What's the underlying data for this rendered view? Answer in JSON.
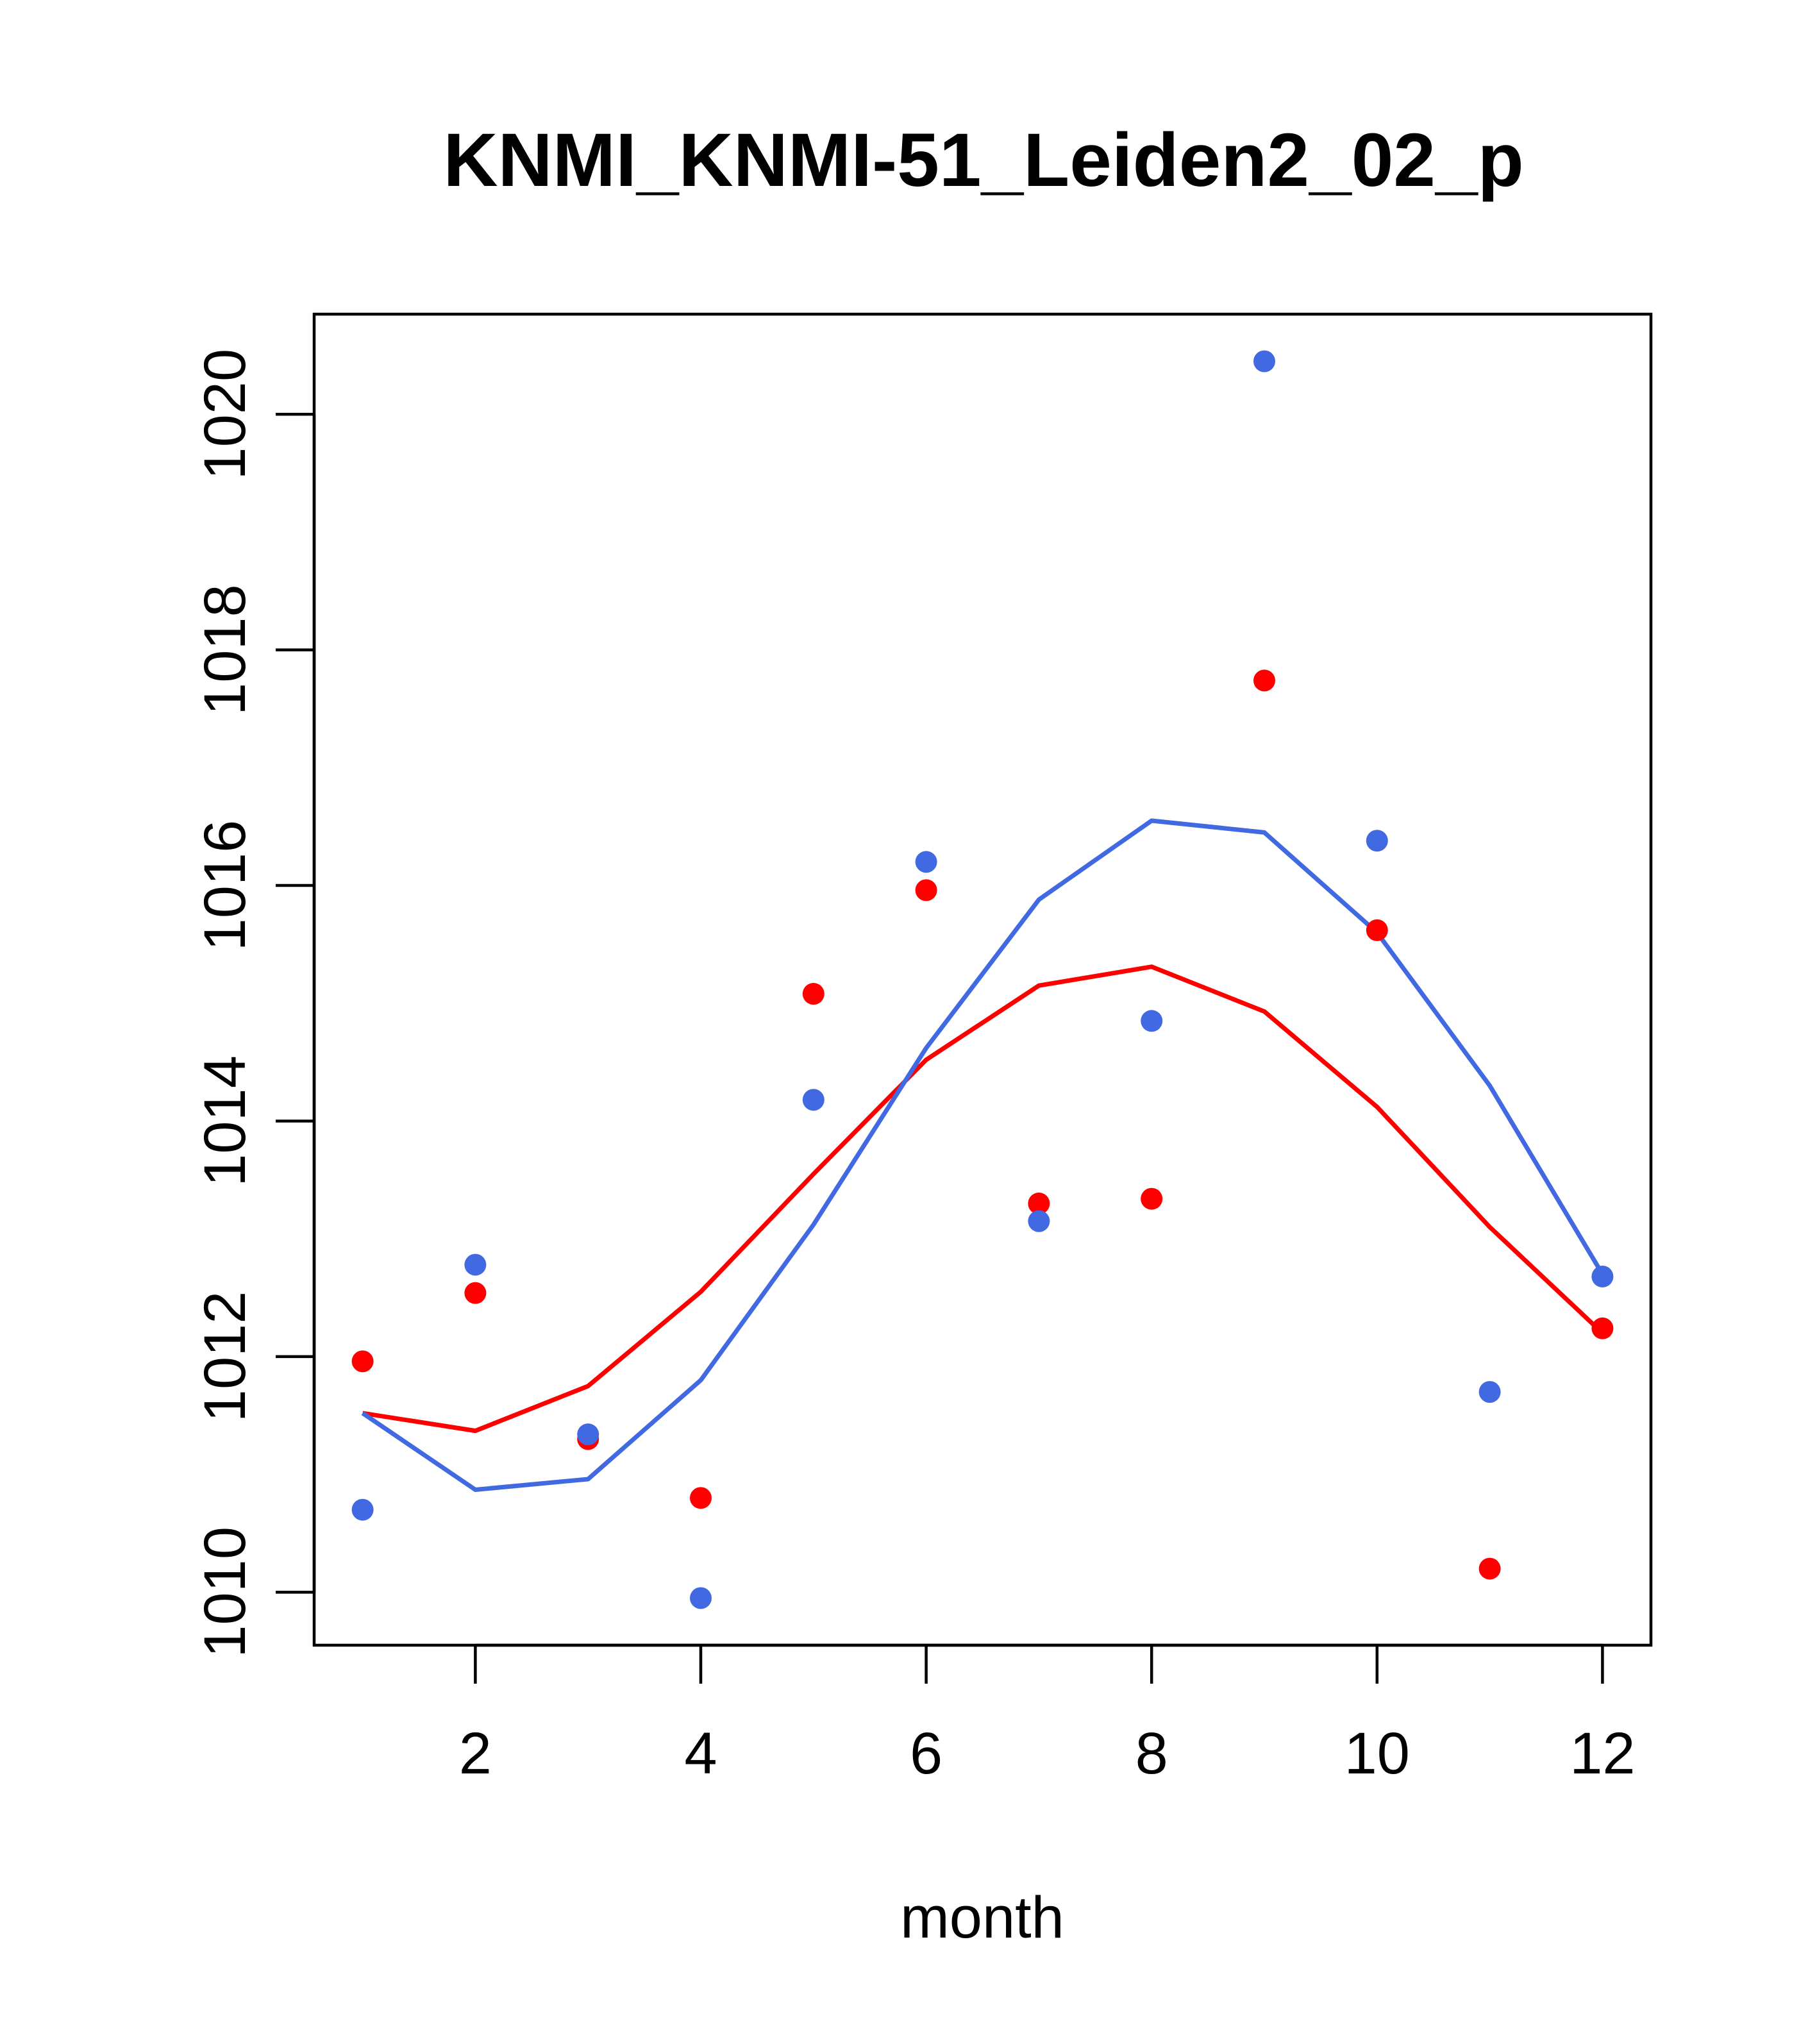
{
  "chart_data": {
    "type": "scatter",
    "title": "KNMI_KNMI-51_Leiden2_02_p",
    "xlabel": "month",
    "ylabel": "",
    "xlim": [
      0.57,
      12.43
    ],
    "ylim": [
      1009.55,
      1020.85
    ],
    "x_ticks": [
      2,
      4,
      6,
      8,
      10,
      12
    ],
    "y_ticks": [
      1010,
      1012,
      1014,
      1016,
      1018,
      1020
    ],
    "x_tick_labels": [
      "2",
      "4",
      "6",
      "8",
      "10",
      "12"
    ],
    "y_tick_labels": [
      "1010",
      "1012",
      "1014",
      "1016",
      "1018",
      "1020"
    ],
    "grid": false,
    "series": [
      {
        "name": "red",
        "color": "#ff0000",
        "points": {
          "x": [
            1,
            2,
            3,
            4,
            5,
            6,
            7,
            8,
            9,
            10,
            11,
            12
          ],
          "y": [
            1011.96,
            1012.54,
            1011.3,
            1010.8,
            1015.08,
            1015.96,
            1013.3,
            1013.34,
            1017.74,
            1015.62,
            1010.2,
            1012.24
          ]
        },
        "line": {
          "x": [
            1,
            2,
            3,
            4,
            5,
            6,
            7,
            8,
            9,
            10,
            11,
            12
          ],
          "y": [
            1011.52,
            1011.37,
            1011.75,
            1012.55,
            1013.55,
            1014.52,
            1015.15,
            1015.31,
            1014.93,
            1014.12,
            1013.1,
            1012.2
          ]
        }
      },
      {
        "name": "blue",
        "color": "#4169e1",
        "points": {
          "x": [
            1,
            2,
            3,
            4,
            5,
            6,
            7,
            8,
            9,
            10,
            11,
            12
          ],
          "y": [
            1010.7,
            1012.78,
            1011.34,
            1009.95,
            1014.18,
            1016.2,
            1013.15,
            1014.85,
            1020.45,
            1016.38,
            1011.7,
            1012.68
          ]
        },
        "line": {
          "x": [
            1,
            2,
            3,
            4,
            5,
            6,
            7,
            8,
            9,
            10,
            11,
            12
          ],
          "y": [
            1011.52,
            1010.87,
            1010.96,
            1011.8,
            1013.12,
            1014.62,
            1015.88,
            1016.55,
            1016.45,
            1015.6,
            1014.3,
            1012.7
          ]
        }
      }
    ]
  }
}
